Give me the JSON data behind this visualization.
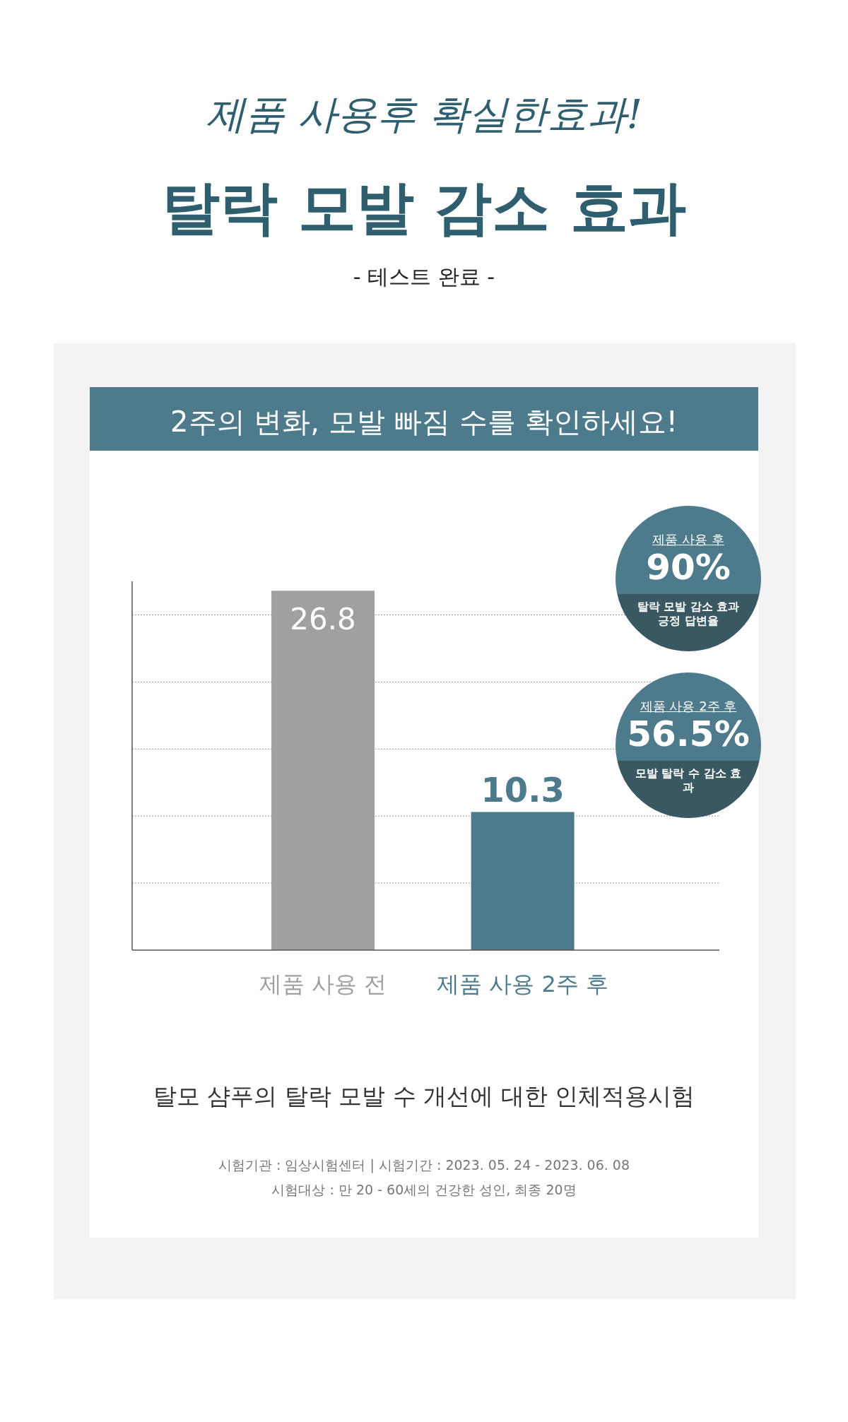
{
  "chart_data": {
    "type": "bar",
    "title": "탈락 모발 감소 효과",
    "subtitle": "2주의 변화, 모발 빠짐 수를 확인하세요!",
    "categories": [
      "제품 사용 전",
      "제품 사용 2주 후"
    ],
    "values": [
      26.8,
      10.3
    ],
    "colors": [
      "#a0a0a0",
      "#4d7b8c"
    ],
    "data_labels": true,
    "ylim": [
      0,
      27.5
    ],
    "yticks": [
      {
        "value": 5,
        "label": null
      },
      {
        "value": 10,
        "label": null
      },
      {
        "value": 15,
        "label": null
      },
      {
        "value": 20,
        "label": null
      },
      {
        "value": 25,
        "label": null
      }
    ],
    "tick_labels": "x",
    "grid": "y",
    "annotations": [
      "제품 사용후 확실한효과!",
      "- 테스트 완료 -",
      "제품 사용 후",
      "90%",
      "탈락 모발 감소 효과 긍정 답변율",
      "제품 사용 2주 후",
      "56.5%",
      "모발 탈락 수 감소 효과",
      "탈모 샴푸의 탈락 모발 수 개선에 대한 인체적용시험",
      "시험기관 : 임상시험센터 | 시험기간 : 2023. 05. 24 - 2023. 06. 08",
      "시험대상 : 만 20 - 60세의 건강한 성인, 최종 20명"
    ]
  }
}
